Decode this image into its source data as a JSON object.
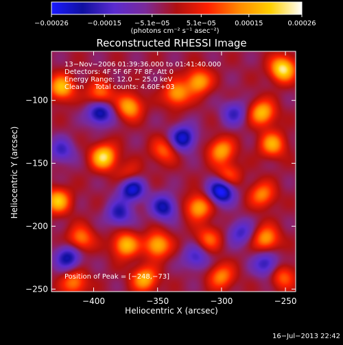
{
  "colorbar": {
    "tick_labels": [
      "−0.00026",
      "−0.00015",
      "−5.1e−05",
      "5.1e−05",
      "0.00015",
      "0.00026"
    ],
    "tick_values": [
      -0.00026,
      -0.00015,
      -5.1e-05,
      5.1e-05,
      0.00015,
      0.00026
    ],
    "range": [
      -0.00026,
      0.00026
    ],
    "unit_label": "(photons cm⁻² s⁻¹ asec⁻²)",
    "colors": [
      "#1a1aff",
      "#1010a0",
      "#5a2bd0",
      "#7a2a9a",
      "#b01010",
      "#ff2000",
      "#ff8a00",
      "#ffd000",
      "#ffffff"
    ]
  },
  "chart_data": {
    "type": "heatmap",
    "title": "Reconstructed RHESSI Image",
    "xlabel": "Heliocentric X (arcsec)",
    "ylabel": "Heliocentric Y (arcsec)",
    "xlim": [
      -433,
      -242
    ],
    "ylim": [
      -252,
      -61
    ],
    "x_ticks": [
      -400,
      -350,
      -300,
      -250
    ],
    "x_tick_labels": [
      "−400",
      "−350",
      "−300",
      "−250"
    ],
    "y_ticks": [
      -100,
      -150,
      -200,
      -250
    ],
    "y_tick_labels": [
      "−100",
      "−150",
      "−200",
      "−250"
    ],
    "annotations": [
      "13−Nov−2006 01:39:36.000 to 01:41:40.000",
      "Detectors: 4F 5F 6F 7F 8F, Att 0",
      "Energy Range: 12.0 − 25.0 keV",
      "Clean     Total counts: 4.60E+03"
    ],
    "peak_label": "Position of Peak = [−248,−73]",
    "peak_position": [
      -248,
      -73
    ],
    "sources": [
      {
        "x": -425,
        "y": -90,
        "v": 0.8
      },
      {
        "x": -395,
        "y": -95,
        "v": 0.6
      },
      {
        "x": -372,
        "y": -105,
        "v": 0.75
      },
      {
        "x": -335,
        "y": -95,
        "v": 0.7
      },
      {
        "x": -318,
        "y": -85,
        "v": 0.75
      },
      {
        "x": -268,
        "y": -110,
        "v": 0.8
      },
      {
        "x": -252,
        "y": -75,
        "v": 1.0
      },
      {
        "x": -392,
        "y": -145,
        "v": 0.95
      },
      {
        "x": -345,
        "y": -140,
        "v": 0.5
      },
      {
        "x": -300,
        "y": -140,
        "v": 0.7
      },
      {
        "x": -260,
        "y": -135,
        "v": 0.7
      },
      {
        "x": -428,
        "y": -180,
        "v": 0.8
      },
      {
        "x": -372,
        "y": -160,
        "v": 0.4
      },
      {
        "x": -318,
        "y": -185,
        "v": 0.75
      },
      {
        "x": -295,
        "y": -160,
        "v": 0.5
      },
      {
        "x": -268,
        "y": -175,
        "v": 0.6
      },
      {
        "x": -410,
        "y": -210,
        "v": 0.6
      },
      {
        "x": -375,
        "y": -215,
        "v": 0.8
      },
      {
        "x": -350,
        "y": -215,
        "v": 0.8
      },
      {
        "x": -310,
        "y": -210,
        "v": 0.5
      },
      {
        "x": -265,
        "y": -210,
        "v": 0.7
      },
      {
        "x": -415,
        "y": -245,
        "v": 0.6
      },
      {
        "x": -360,
        "y": -242,
        "v": 0.75
      },
      {
        "x": -300,
        "y": -240,
        "v": 0.6
      },
      {
        "x": -252,
        "y": -240,
        "v": 0.5
      },
      {
        "x": -395,
        "y": -110,
        "v": -0.8
      },
      {
        "x": -330,
        "y": -130,
        "v": -0.8
      },
      {
        "x": -370,
        "y": -170,
        "v": -0.9
      },
      {
        "x": -345,
        "y": -185,
        "v": -0.7
      },
      {
        "x": -300,
        "y": -172,
        "v": -1.0
      },
      {
        "x": -380,
        "y": -190,
        "v": -0.6
      },
      {
        "x": -420,
        "y": -225,
        "v": -0.7
      },
      {
        "x": -285,
        "y": -205,
        "v": -0.5
      },
      {
        "x": -265,
        "y": -230,
        "v": -0.6
      },
      {
        "x": -320,
        "y": -225,
        "v": -0.5
      },
      {
        "x": -425,
        "y": -140,
        "v": -0.5
      },
      {
        "x": -290,
        "y": -110,
        "v": -0.5
      }
    ]
  },
  "footer": {
    "timestamp": "16−Jul−2013 22:42"
  }
}
